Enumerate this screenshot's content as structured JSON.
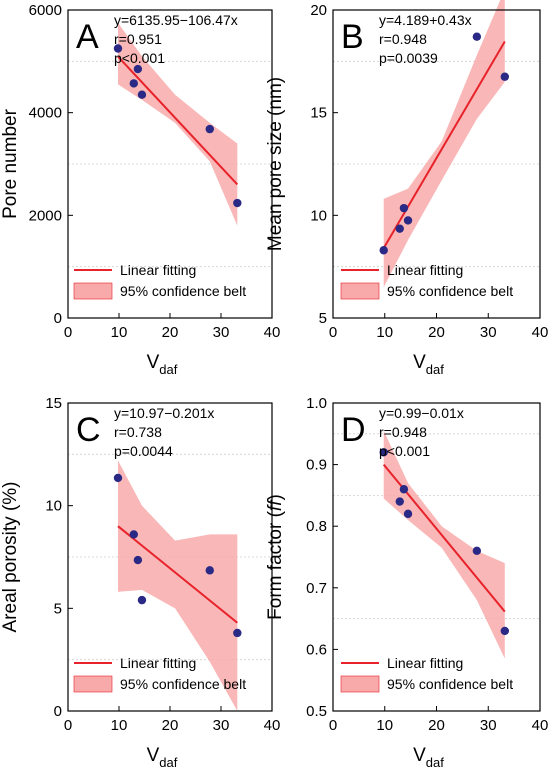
{
  "chart_data": [
    {
      "type": "scatter",
      "panel": "A",
      "ylabel": "Pore number",
      "xlabel": "V",
      "xlabel_sub": "daf",
      "xlim": [
        0,
        40
      ],
      "ylim": [
        0,
        6000
      ],
      "xticks": [
        0,
        10,
        20,
        30,
        40
      ],
      "yticks": [
        0,
        2000,
        4000,
        6000
      ],
      "gridlines_y": [
        1000,
        3000,
        5000
      ],
      "annotations": [
        "y=6135.95−106.47x",
        "r=0.951",
        "p<0.001"
      ],
      "points": [
        {
          "x": 9.8,
          "y": 5250
        },
        {
          "x": 12.9,
          "y": 4570
        },
        {
          "x": 13.7,
          "y": 4850
        },
        {
          "x": 14.5,
          "y": 4350
        },
        {
          "x": 27.8,
          "y": 3680
        },
        {
          "x": 33.2,
          "y": 2240
        }
      ],
      "fit": {
        "intercept": 6135.95,
        "slope": -106.47,
        "x_range": [
          9.8,
          33.2
        ]
      },
      "confidence_band": {
        "x": [
          9.8,
          14.5,
          21.0,
          27.8,
          33.2
        ],
        "lower": [
          4550,
          4250,
          3800,
          3050,
          1800
        ],
        "upper": [
          5750,
          5100,
          4350,
          3800,
          3400
        ]
      },
      "legend": {
        "position": "bottom-left",
        "items": [
          "Linear fitting",
          "95% confidence belt"
        ]
      }
    },
    {
      "type": "scatter",
      "panel": "B",
      "ylabel": "Mean pore size (nm)",
      "xlabel": "V",
      "xlabel_sub": "daf",
      "xlim": [
        0,
        40
      ],
      "ylim": [
        5,
        20
      ],
      "xticks": [
        0,
        10,
        20,
        30,
        40
      ],
      "yticks": [
        5,
        10,
        15,
        20
      ],
      "gridlines_y": [
        7.5,
        12.5,
        17.5
      ],
      "annotations": [
        "y=4.189+0.43x",
        "r=0.948",
        "p=0.0039"
      ],
      "points": [
        {
          "x": 9.8,
          "y": 8.3
        },
        {
          "x": 12.9,
          "y": 9.35
        },
        {
          "x": 13.7,
          "y": 10.35
        },
        {
          "x": 14.5,
          "y": 9.75
        },
        {
          "x": 27.8,
          "y": 18.7
        },
        {
          "x": 33.2,
          "y": 16.75
        }
      ],
      "fit": {
        "intercept": 4.189,
        "slope": 0.43,
        "x_range": [
          9.8,
          33.2
        ]
      },
      "confidence_band": {
        "x": [
          9.8,
          14.5,
          21.0,
          27.8,
          33.2
        ],
        "lower": [
          6.5,
          8.8,
          11.7,
          14.7,
          16.5
        ],
        "upper": [
          10.8,
          11.3,
          13.6,
          17.8,
          21.0
        ]
      },
      "legend": {
        "position": "bottom-right",
        "items": [
          "Linear fitting",
          "95% confidence belt"
        ]
      }
    },
    {
      "type": "scatter",
      "panel": "C",
      "ylabel": "Areal porosity (%)",
      "xlabel": "V",
      "xlabel_sub": "daf",
      "xlim": [
        0,
        40
      ],
      "ylim": [
        0,
        15
      ],
      "xticks": [
        0,
        10,
        20,
        30,
        40
      ],
      "yticks": [
        0,
        5,
        10,
        15
      ],
      "gridlines_y": [
        2.5,
        7.5,
        12.5
      ],
      "annotations": [
        "y=10.97−0.201x",
        "r=0.738",
        "p=0.0044"
      ],
      "points": [
        {
          "x": 9.8,
          "y": 11.35
        },
        {
          "x": 12.9,
          "y": 8.6
        },
        {
          "x": 13.7,
          "y": 7.35
        },
        {
          "x": 14.5,
          "y": 5.4
        },
        {
          "x": 27.8,
          "y": 6.85
        },
        {
          "x": 33.2,
          "y": 3.8
        }
      ],
      "fit": {
        "intercept": 10.97,
        "slope": -0.201,
        "x_range": [
          9.8,
          33.2
        ]
      },
      "confidence_band": {
        "x": [
          9.8,
          14.5,
          21.0,
          27.8,
          33.2
        ],
        "lower": [
          5.8,
          5.9,
          5.0,
          2.4,
          0.0
        ],
        "upper": [
          12.2,
          10.0,
          8.3,
          8.6,
          8.6
        ]
      },
      "legend": {
        "position": "bottom-left",
        "items": [
          "Linear fitting",
          "95% confidence belt"
        ]
      }
    },
    {
      "type": "scatter",
      "panel": "D",
      "ylabel": "Form factor (ff)",
      "ylabel_main": "Form factor (",
      "ylabel_italic": "ff",
      "ylabel_close": ")",
      "xlabel": "V",
      "xlabel_sub": "daf",
      "xlim": [
        0,
        40
      ],
      "ylim": [
        0.5,
        1.0
      ],
      "xticks": [
        0,
        10,
        20,
        30,
        40
      ],
      "yticks": [
        0.5,
        0.6,
        0.7,
        0.8,
        0.9,
        1.0
      ],
      "gridlines_y": [
        0.65,
        0.85,
        0.95
      ],
      "annotations": [
        "y=0.99−0.01x",
        "r=0.948",
        "p<0.001"
      ],
      "points": [
        {
          "x": 9.8,
          "y": 0.92
        },
        {
          "x": 12.9,
          "y": 0.84
        },
        {
          "x": 13.7,
          "y": 0.86
        },
        {
          "x": 14.5,
          "y": 0.82
        },
        {
          "x": 27.8,
          "y": 0.76
        },
        {
          "x": 33.2,
          "y": 0.63
        }
      ],
      "fit": {
        "intercept": 1.0,
        "slope": -0.0102,
        "x_range": [
          9.8,
          33.2
        ]
      },
      "confidence_band": {
        "x": [
          9.8,
          14.5,
          21.0,
          27.8,
          33.2
        ],
        "lower": [
          0.845,
          0.81,
          0.765,
          0.68,
          0.585
        ],
        "upper": [
          0.955,
          0.87,
          0.8,
          0.76,
          0.74
        ]
      },
      "legend": {
        "position": "bottom-right",
        "items": [
          "Linear fitting",
          "95% confidence belt"
        ]
      }
    }
  ],
  "colors": {
    "fit_line": "#e8222a",
    "band": "#f8aaaa",
    "point": "#2a2a86",
    "grid": "#d0d0d0",
    "axis": "#000000"
  }
}
